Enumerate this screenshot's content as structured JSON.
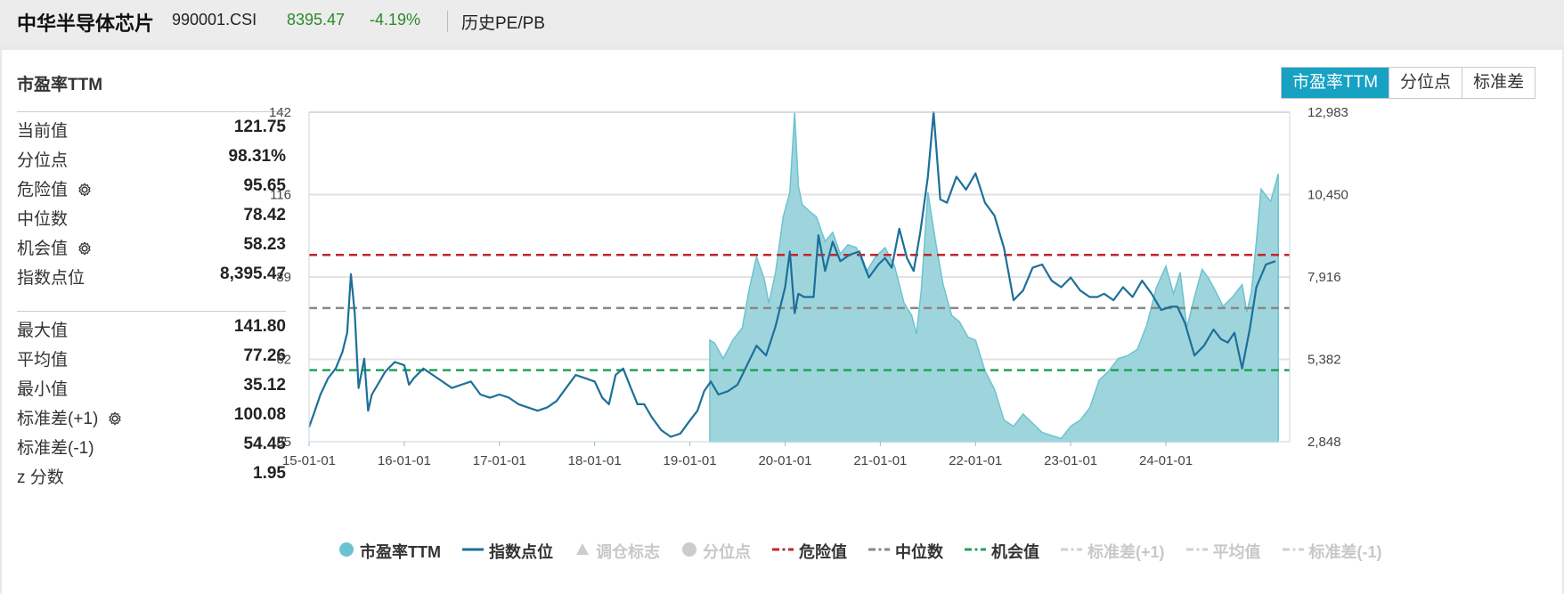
{
  "header": {
    "name": "中华半导体芯片",
    "code": "990001.CSI",
    "price": "8395.47",
    "change": "-4.19%",
    "history_link": "历史PE/PB"
  },
  "panel": {
    "title": "市盈率TTM",
    "tabs": [
      "市盈率TTM",
      "分位点",
      "标准差"
    ],
    "active_tab": "市盈率TTM"
  },
  "stats_top": [
    {
      "label": "当前值",
      "value": "121.75",
      "gear": false
    },
    {
      "label": "分位点",
      "value": "98.31%",
      "gear": false
    },
    {
      "label": "危险值",
      "value": "95.65",
      "gear": true
    },
    {
      "label": "中位数",
      "value": "78.42",
      "gear": false
    },
    {
      "label": "机会值",
      "value": "58.23",
      "gear": true
    },
    {
      "label": "指数点位",
      "value": "8,395.47",
      "gear": false
    }
  ],
  "stats_bottom": [
    {
      "label": "最大值",
      "value": "141.80",
      "gear": false
    },
    {
      "label": "平均值",
      "value": "77.26",
      "gear": false
    },
    {
      "label": "最小值",
      "value": "35.12",
      "gear": false
    },
    {
      "label": "标准差(+1)",
      "value": "100.08",
      "gear": true
    },
    {
      "label": "标准差(-1)",
      "value": "54.45",
      "gear": false
    },
    {
      "label": "z 分数",
      "value": "1.95",
      "gear": false
    }
  ],
  "colors": {
    "pe_fill": "#9ed5dd",
    "pe_line": "#6cc3cf",
    "index_line": "#1d6f99",
    "danger": "#c0262b",
    "median": "#888888",
    "opportunity": "#23a05a",
    "accent": "#17a1c3",
    "price_down": "#2a8a2a"
  },
  "chart_data": {
    "type": "area",
    "x_ticks": [
      "15-01-01",
      "16-01-01",
      "17-01-01",
      "18-01-01",
      "19-01-01",
      "20-01-01",
      "21-01-01",
      "22-01-01",
      "23-01-01",
      "24-01-01"
    ],
    "x_range": [
      2015.0,
      2025.3
    ],
    "y_left": {
      "min": 35,
      "max": 142,
      "ticks": [
        "35",
        "62",
        "89",
        "116",
        "142"
      ]
    },
    "y_right": {
      "min": 2848,
      "max": 12983,
      "ticks": [
        "2,848",
        "5,382",
        "7,916",
        "10,450",
        "12,983"
      ]
    },
    "reference_lines": {
      "danger": 95.65,
      "median": 78.42,
      "opportunity": 58.23
    },
    "series": [
      {
        "name": "市盈率TTM",
        "axis": "left",
        "x": [
          2019.21,
          2019.26,
          2019.35,
          2019.45,
          2019.55,
          2019.62,
          2019.7,
          2019.78,
          2019.83,
          2019.9,
          2019.98,
          2020.05,
          2020.1,
          2020.14,
          2020.18,
          2020.25,
          2020.33,
          2020.42,
          2020.5,
          2020.58,
          2020.66,
          2020.75,
          2020.85,
          2020.95,
          2021.05,
          2021.15,
          2021.25,
          2021.33,
          2021.38,
          2021.43,
          2021.5,
          2021.58,
          2021.66,
          2021.75,
          2021.83,
          2021.92,
          2022.0,
          2022.1,
          2022.2,
          2022.3,
          2022.4,
          2022.5,
          2022.6,
          2022.7,
          2022.8,
          2022.9,
          2023.0,
          2023.1,
          2023.2,
          2023.3,
          2023.4,
          2023.5,
          2023.6,
          2023.7,
          2023.8,
          2023.9,
          2024.0,
          2024.08,
          2024.15,
          2024.22,
          2024.3,
          2024.38,
          2024.45,
          2024.52,
          2024.6,
          2024.7,
          2024.8,
          2024.85,
          2024.9,
          2024.95,
          2025.0,
          2025.1,
          2025.18
        ],
        "values": [
          68,
          67,
          62,
          68,
          72,
          84,
          95,
          88,
          80,
          90,
          108,
          116,
          142,
          118,
          112,
          110,
          108,
          100,
          103,
          96,
          99,
          98,
          90,
          95,
          98,
          92,
          80,
          76,
          70,
          84,
          116,
          100,
          86,
          76,
          74,
          69,
          68,
          58,
          52,
          42,
          40,
          44,
          41,
          38,
          37,
          36,
          40,
          42,
          46,
          55,
          58,
          62,
          63,
          65,
          73,
          85,
          92,
          83,
          90,
          72,
          82,
          91,
          88,
          84,
          79,
          82,
          86,
          77,
          84,
          100,
          117,
          113,
          122
        ]
      },
      {
        "name": "指数点位",
        "axis": "right",
        "x": [
          2015.0,
          2015.05,
          2015.12,
          2015.2,
          2015.28,
          2015.35,
          2015.4,
          2015.44,
          2015.48,
          2015.52,
          2015.58,
          2015.62,
          2015.66,
          2015.72,
          2015.8,
          2015.9,
          2016.0,
          2016.05,
          2016.1,
          2016.2,
          2016.3,
          2016.4,
          2016.5,
          2016.6,
          2016.7,
          2016.8,
          2016.9,
          2017.0,
          2017.1,
          2017.2,
          2017.3,
          2017.4,
          2017.5,
          2017.6,
          2017.7,
          2017.8,
          2017.9,
          2018.0,
          2018.08,
          2018.15,
          2018.22,
          2018.3,
          2018.38,
          2018.45,
          2018.52,
          2018.6,
          2018.7,
          2018.8,
          2018.9,
          2019.0,
          2019.08,
          2019.15,
          2019.22,
          2019.3,
          2019.4,
          2019.5,
          2019.6,
          2019.7,
          2019.8,
          2019.9,
          2020.0,
          2020.05,
          2020.1,
          2020.14,
          2020.2,
          2020.3,
          2020.35,
          2020.42,
          2020.5,
          2020.58,
          2020.68,
          2020.78,
          2020.88,
          2020.98,
          2021.05,
          2021.12,
          2021.2,
          2021.28,
          2021.35,
          2021.42,
          2021.5,
          2021.56,
          2021.63,
          2021.7,
          2021.8,
          2021.9,
          2022.0,
          2022.1,
          2022.2,
          2022.3,
          2022.4,
          2022.5,
          2022.6,
          2022.7,
          2022.8,
          2022.9,
          2023.0,
          2023.1,
          2023.2,
          2023.28,
          2023.35,
          2023.45,
          2023.55,
          2023.65,
          2023.75,
          2023.85,
          2023.95,
          2024.05,
          2024.12,
          2024.2,
          2024.3,
          2024.4,
          2024.5,
          2024.58,
          2024.65,
          2024.72,
          2024.8,
          2024.88,
          2024.95,
          2025.05,
          2025.15
        ],
        "values": [
          3300,
          3700,
          4300,
          4800,
          5100,
          5600,
          6200,
          8000,
          6800,
          4500,
          5400,
          3800,
          4300,
          4600,
          5000,
          5300,
          5200,
          4600,
          4800,
          5100,
          4900,
          4700,
          4500,
          4600,
          4700,
          4300,
          4200,
          4300,
          4200,
          4000,
          3900,
          3800,
          3900,
          4100,
          4500,
          4900,
          4800,
          4700,
          4200,
          4000,
          4900,
          5100,
          4500,
          4000,
          4000,
          3600,
          3200,
          3000,
          3100,
          3500,
          3800,
          4400,
          4700,
          4300,
          4400,
          4600,
          5200,
          5800,
          5500,
          6400,
          7600,
          8700,
          6800,
          7400,
          7300,
          7300,
          9200,
          8100,
          9000,
          8400,
          8600,
          8700,
          7900,
          8300,
          8500,
          8200,
          9400,
          8500,
          8100,
          9300,
          11000,
          12983,
          10300,
          10200,
          11000,
          10600,
          11100,
          10200,
          9800,
          8800,
          7200,
          7500,
          8200,
          8300,
          7800,
          7600,
          7900,
          7500,
          7300,
          7300,
          7400,
          7200,
          7600,
          7300,
          7800,
          7400,
          6900,
          7000,
          7000,
          6500,
          5500,
          5800,
          6300,
          6000,
          5900,
          6200,
          5100,
          6300,
          7600,
          8300,
          8400
        ]
      }
    ]
  },
  "legend": [
    {
      "label": "市盈率TTM",
      "symbol": "dot",
      "color": "#6cc3cf",
      "active": true
    },
    {
      "label": "指数点位",
      "symbol": "line",
      "color": "#1d6f99",
      "active": true
    },
    {
      "label": "调仓标志",
      "symbol": "triangle",
      "color": "#cccccc",
      "active": false
    },
    {
      "label": "分位点",
      "symbol": "dot",
      "color": "#cccccc",
      "active": false
    },
    {
      "label": "危险值",
      "symbol": "dash",
      "color": "#c0262b",
      "active": true
    },
    {
      "label": "中位数",
      "symbol": "dash",
      "color": "#888888",
      "active": true
    },
    {
      "label": "机会值",
      "symbol": "dash",
      "color": "#23a05a",
      "active": true
    },
    {
      "label": "标准差(+1)",
      "symbol": "dash",
      "color": "#d0d0d0",
      "active": false
    },
    {
      "label": "平均值",
      "symbol": "dash",
      "color": "#d0d0d0",
      "active": false
    },
    {
      "label": "标准差(-1)",
      "symbol": "dash",
      "color": "#d0d0d0",
      "active": false
    }
  ]
}
